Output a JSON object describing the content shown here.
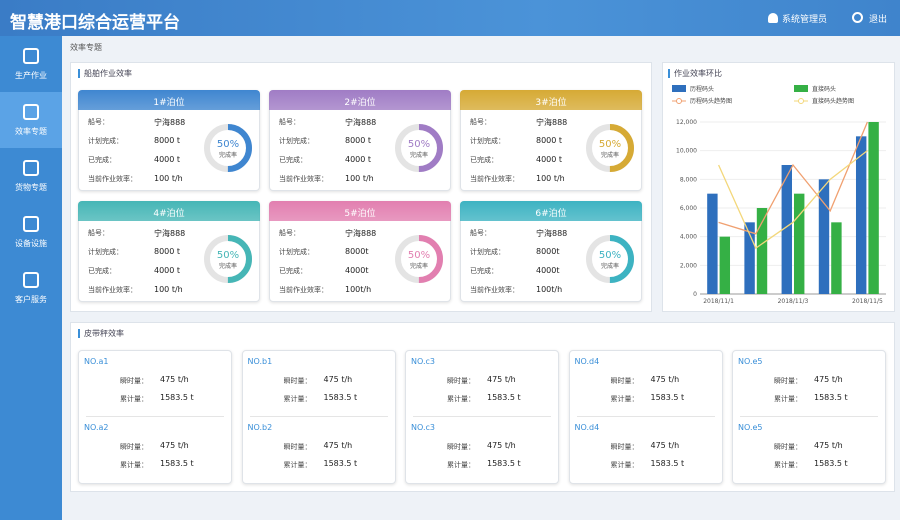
{
  "header": {
    "title": "智慧港口综合运营平台",
    "user": "系统管理员",
    "logout": "退出"
  },
  "sidebar": {
    "items": [
      "生产作业",
      "效率专题",
      "货物专题",
      "设备设施",
      "客户服务"
    ],
    "active": 1
  },
  "breadcrumb": "效率专题",
  "berth_panel": {
    "title": "船舶作业效率",
    "berths": [
      {
        "name": "1#泊位",
        "color": "#3f86d0",
        "fields": [
          [
            "船号：",
            "宁海888"
          ],
          [
            "计划完成：",
            "8000 t"
          ],
          [
            "已完成：",
            "4000 t"
          ],
          [
            "当前作业效率：",
            "100 t/h"
          ]
        ],
        "completion": {
          "value": 50,
          "label": "50%"
        },
        "caption": "完成率"
      },
      {
        "name": "2#泊位",
        "color": "#a07cc5",
        "fields": [
          [
            "船号：",
            "宁海888"
          ],
          [
            "计划完成：",
            "8000 t"
          ],
          [
            "已完成：",
            "4000 t"
          ],
          [
            "当前作业效率：",
            "100 t/h"
          ]
        ],
        "completion": {
          "value": 50,
          "label": "50%"
        },
        "caption": "完成率"
      },
      {
        "name": "3#泊位",
        "color": "#d6aa35",
        "fields": [
          [
            "船号：",
            "宁海888"
          ],
          [
            "计划完成：",
            "8000 t"
          ],
          [
            "已完成：",
            "4000 t"
          ],
          [
            "当前作业效率：",
            "100 t/h"
          ]
        ],
        "completion": {
          "value": 50,
          "label": "50%"
        },
        "caption": "完成率"
      },
      {
        "name": "4#泊位",
        "color": "#46b6b6",
        "fields": [
          [
            "船号：",
            "宁海888"
          ],
          [
            "计划完成：",
            "8000 t"
          ],
          [
            "已完成：",
            "4000 t"
          ],
          [
            "当前作业效率：",
            "100 t/h"
          ]
        ],
        "completion": {
          "value": 50,
          "label": "50%"
        },
        "caption": "完成率"
      },
      {
        "name": "5#泊位",
        "color": "#e27fb0",
        "fields": [
          [
            "船号：",
            "宁海888"
          ],
          [
            "计划完成：",
            "8000t"
          ],
          [
            "已完成：",
            "4000t"
          ],
          [
            "当前作业效率：",
            "100t/h"
          ]
        ],
        "completion": {
          "value": 50,
          "label": "50%"
        },
        "caption": "完成率"
      },
      {
        "name": "6#泊位",
        "color": "#3db3c2",
        "fields": [
          [
            "船号：",
            "宁海888"
          ],
          [
            "计划完成：",
            "8000t"
          ],
          [
            "已完成：",
            "4000t"
          ],
          [
            "当前作业效率：",
            "100t/h"
          ]
        ],
        "completion": {
          "value": 50,
          "label": "50%"
        },
        "caption": "完成率"
      }
    ]
  },
  "chart_data": {
    "type": "bar_line",
    "title": "作业效率环比",
    "categories": [
      "2018/11/1",
      null,
      "2018/11/3",
      null,
      "2018/11/5"
    ],
    "series": [
      {
        "name": "历程码头",
        "kind": "bar",
        "color": "#2e6fbd",
        "values": [
          7000,
          5000,
          9000,
          8000,
          11000
        ]
      },
      {
        "name": "直接码头",
        "kind": "bar",
        "color": "#35b045",
        "values": [
          4000,
          6000,
          7000,
          5000,
          12000
        ]
      },
      {
        "name": "历程码头趋势图",
        "kind": "line",
        "color": "#f0a070",
        "values": [
          5000,
          4200,
          9000,
          5800,
          12000
        ]
      },
      {
        "name": "直接码头趋势图",
        "kind": "line",
        "color": "#f3d77a",
        "values": [
          9000,
          3200,
          5000,
          8000,
          10000
        ]
      }
    ],
    "ylim": [
      0,
      12000
    ],
    "yticks": [
      0,
      {
        "value": 2000,
        "label": "2,000"
      },
      {
        "value": 4000,
        "label": "4,000"
      },
      {
        "value": 6000,
        "label": "6,000"
      },
      {
        "value": 8000,
        "label": "8,000"
      },
      {
        "value": 10000,
        "label": "10,000"
      },
      {
        "value": 12000,
        "label": "12,000"
      }
    ],
    "grid": true
  },
  "belt_panel": {
    "title": "皮带秤效率",
    "units": [
      {
        "name": "NO.a1",
        "rows": [
          [
            "瞬时量：",
            "475 t/h"
          ],
          [
            "累计量：",
            "1583.5 t"
          ]
        ]
      },
      {
        "name": "NO.a2",
        "rows": [
          [
            "瞬时量：",
            "475 t/h"
          ],
          [
            "累计量：",
            "1583.5 t"
          ]
        ]
      },
      {
        "name": "NO.b1",
        "rows": [
          [
            "瞬时量：",
            "475 t/h"
          ],
          [
            "累计量：",
            "1583.5 t"
          ]
        ]
      },
      {
        "name": "NO.b2",
        "rows": [
          [
            "瞬时量：",
            "475 t/h"
          ],
          [
            "累计量：",
            "1583.5 t"
          ]
        ]
      },
      {
        "name": "NO.c3",
        "rows": [
          [
            "瞬时量：",
            "475 t/h"
          ],
          [
            "累计量：",
            "1583.5 t"
          ]
        ]
      },
      {
        "name": "NO.c3",
        "rows": [
          [
            "瞬时量：",
            "475 t/h"
          ],
          [
            "累计量：",
            "1583.5 t"
          ]
        ]
      },
      {
        "name": "NO.d4",
        "rows": [
          [
            "瞬时量：",
            "475 t/h"
          ],
          [
            "累计量：",
            "1583.5 t"
          ]
        ]
      },
      {
        "name": "NO.d4",
        "rows": [
          [
            "瞬时量：",
            "475 t/h"
          ],
          [
            "累计量：",
            "1583.5 t"
          ]
        ]
      },
      {
        "name": "NO.e5",
        "rows": [
          [
            "瞬时量：",
            "475 t/h"
          ],
          [
            "累计量：",
            "1583.5 t"
          ]
        ]
      },
      {
        "name": "NO.e5",
        "rows": [
          [
            "瞬时量：",
            "475 t/h"
          ],
          [
            "累计量：",
            "1583.5 t"
          ]
        ]
      }
    ]
  }
}
